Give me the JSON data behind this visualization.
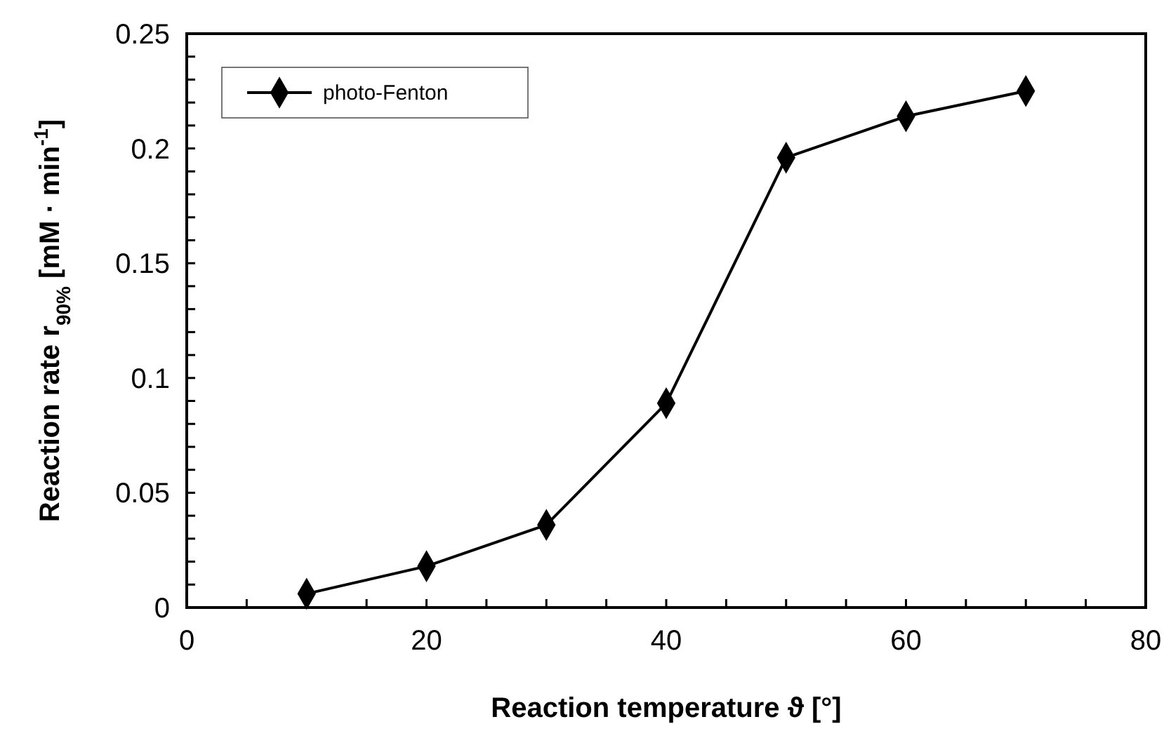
{
  "chart_data": {
    "type": "line",
    "xlabel": "Reaction temperature ϑ [°]",
    "ylabel": "Reaction rate r$_{90%}$  [mM · min$^{-1}$]",
    "x": [
      10,
      20,
      30,
      40,
      50,
      60,
      70
    ],
    "series": [
      {
        "name": "photo-Fenton",
        "color": "#000000",
        "values": [
          0.006,
          0.018,
          0.036,
          0.089,
          0.196,
          0.214,
          0.225
        ]
      }
    ],
    "xlim": [
      0,
      80
    ],
    "xticks": [
      0,
      {
        "value": 5,
        "label": null
      },
      {
        "value": 10,
        "label": null
      },
      {
        "value": 15,
        "label": null
      },
      20,
      {
        "value": 25,
        "label": null
      },
      {
        "value": 30,
        "label": null
      },
      {
        "value": 35,
        "label": null
      },
      40,
      {
        "value": 45,
        "label": null
      },
      {
        "value": 50,
        "label": null
      },
      {
        "value": 55,
        "label": null
      },
      60,
      {
        "value": 65,
        "label": null
      },
      {
        "value": 70,
        "label": null
      },
      {
        "value": 75,
        "label": null
      },
      80
    ],
    "ylim": [
      0,
      0.25
    ],
    "yticks": [
      0,
      {
        "value": 0.01,
        "label": null
      },
      {
        "value": 0.02,
        "label": null
      },
      {
        "value": 0.03,
        "label": null
      },
      {
        "value": 0.04,
        "label": null
      },
      0.05,
      {
        "value": 0.06,
        "label": null
      },
      {
        "value": 0.07,
        "label": null
      },
      {
        "value": 0.08,
        "label": null
      },
      {
        "value": 0.09,
        "label": null
      },
      0.1,
      {
        "value": 0.11,
        "label": null
      },
      {
        "value": 0.12,
        "label": null
      },
      {
        "value": 0.13,
        "label": null
      },
      {
        "value": 0.14,
        "label": null
      },
      0.15,
      {
        "value": 0.16,
        "label": null
      },
      {
        "value": 0.17,
        "label": null
      },
      {
        "value": 0.18,
        "label": null
      },
      {
        "value": 0.19,
        "label": null
      },
      0.2,
      {
        "value": 0.21,
        "label": null
      },
      {
        "value": 0.22,
        "label": null
      },
      {
        "value": 0.23,
        "label": null
      },
      {
        "value": 0.24,
        "label": null
      },
      0.25
    ],
    "marker": "diamond",
    "line_style": "solid",
    "legend": "top left",
    "grid": false
  }
}
